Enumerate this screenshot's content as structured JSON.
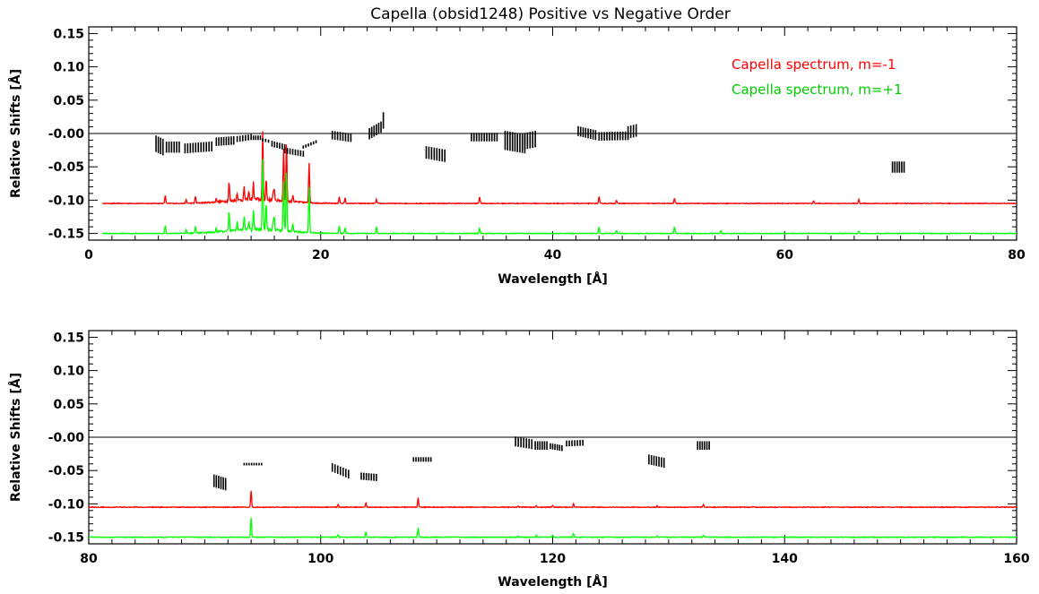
{
  "chart_data": [
    {
      "type": "line",
      "title": "Capella (obsid1248) Positive vs Negative Order",
      "xlabel": "Wavelength [Å]",
      "ylabel": "Relative Shifts [Å]",
      "xlim": [
        0,
        80
      ],
      "ylim": [
        -0.16,
        0.16
      ],
      "xticks": [
        "0",
        "20",
        "40",
        "60",
        "80"
      ],
      "yticks": [
        "0.15",
        "0.10",
        "0.05",
        "-0.00",
        "-0.05",
        "-0.10",
        "-0.15"
      ],
      "legend_position": "top-right",
      "reference_line_y": 0.0,
      "series": [
        {
          "name": "Capella spectrum, m=-1",
          "color": "#ff0000",
          "baseline": -0.105,
          "peaks": [
            [
              6.6,
              0.012
            ],
            [
              8.4,
              0.005
            ],
            [
              9.2,
              0.01
            ],
            [
              11.0,
              0.006
            ],
            [
              12.1,
              0.028
            ],
            [
              12.8,
              0.012
            ],
            [
              13.4,
              0.018
            ],
            [
              13.8,
              0.012
            ],
            [
              14.2,
              0.025
            ],
            [
              15.0,
              0.1
            ],
            [
              15.3,
              0.03
            ],
            [
              15.9,
              0.01
            ],
            [
              16.0,
              0.015
            ],
            [
              16.8,
              0.08
            ],
            [
              17.05,
              0.088
            ],
            [
              17.6,
              0.01
            ],
            [
              19.0,
              0.06
            ],
            [
              21.6,
              0.01
            ],
            [
              22.1,
              0.008
            ],
            [
              24.8,
              0.006
            ],
            [
              33.7,
              0.01
            ],
            [
              44.0,
              0.01
            ],
            [
              45.5,
              0.005
            ],
            [
              50.5,
              0.008
            ],
            [
              62.5,
              0.004
            ],
            [
              66.4,
              0.006
            ]
          ]
        },
        {
          "name": "Capella spectrum, m=+1",
          "color": "#00ff00",
          "baseline": -0.15,
          "peaks": [
            [
              6.6,
              0.012
            ],
            [
              8.4,
              0.005
            ],
            [
              9.2,
              0.01
            ],
            [
              11.0,
              0.006
            ],
            [
              12.1,
              0.03
            ],
            [
              12.8,
              0.012
            ],
            [
              13.4,
              0.022
            ],
            [
              13.8,
              0.012
            ],
            [
              14.2,
              0.028
            ],
            [
              15.0,
              0.105
            ],
            [
              15.3,
              0.04
            ],
            [
              15.9,
              0.012
            ],
            [
              16.0,
              0.02
            ],
            [
              16.8,
              0.075
            ],
            [
              17.05,
              0.09
            ],
            [
              17.6,
              0.012
            ],
            [
              19.0,
              0.068
            ],
            [
              21.6,
              0.012
            ],
            [
              22.1,
              0.008
            ],
            [
              24.8,
              0.01
            ],
            [
              33.7,
              0.008
            ],
            [
              44.0,
              0.01
            ],
            [
              45.5,
              0.005
            ],
            [
              50.5,
              0.01
            ],
            [
              54.5,
              0.004
            ],
            [
              66.4,
              0.004
            ]
          ]
        },
        {
          "name": "",
          "type": "errorbar",
          "color": "#000000",
          "groups": [
            {
              "x": [
                5.8,
                6.4
              ],
              "y": [
                -0.015,
                -0.02
              ],
              "err": 0.012
            },
            {
              "x": [
                6.7,
                7.8
              ],
              "y": [
                -0.02,
                -0.02
              ],
              "err": 0.008
            },
            {
              "x": [
                8.3,
                10.6
              ],
              "y": [
                -0.022,
                -0.019
              ],
              "err": 0.007
            },
            {
              "x": [
                11.0,
                12.5
              ],
              "y": [
                -0.012,
                -0.01
              ],
              "err": 0.006
            },
            {
              "x": [
                12.8,
                14.0
              ],
              "y": [
                -0.008,
                -0.005
              ],
              "err": 0.004
            },
            {
              "x": [
                14.2,
                14.8
              ],
              "y": [
                -0.006,
                -0.006
              ],
              "err": 0.003
            },
            {
              "x": [
                15.0,
                15.5
              ],
              "y": [
                -0.009,
                -0.011
              ],
              "err": 0.002
            },
            {
              "x": [
                15.8,
                16.9
              ],
              "y": [
                -0.015,
                -0.02
              ],
              "err": 0.004
            },
            {
              "x": [
                16.9,
                18.5
              ],
              "y": [
                -0.025,
                -0.03
              ],
              "err": 0.004
            },
            {
              "x": [
                18.5,
                19.6
              ],
              "y": [
                -0.02,
                -0.012
              ],
              "err": 0.002
            },
            {
              "x": [
                21.0,
                22.6
              ],
              "y": [
                -0.002,
                -0.006
              ],
              "err": 0.006
            },
            {
              "x": [
                24.2,
                25.2
              ],
              "y": [
                0.0,
                0.01
              ],
              "err": 0.008
            },
            {
              "x": [
                25.4,
                25.4
              ],
              "y": [
                0.02,
                0.02
              ],
              "err": 0.012
            },
            {
              "x": [
                29.1,
                30.7
              ],
              "y": [
                -0.028,
                -0.033
              ],
              "err": 0.009
            },
            {
              "x": [
                33.0,
                35.2
              ],
              "y": [
                -0.005,
                -0.005
              ],
              "err": 0.006
            },
            {
              "x": [
                35.9,
                37.6
              ],
              "y": [
                -0.01,
                -0.015
              ],
              "err": 0.014
            },
            {
              "x": [
                37.6,
                38.5
              ],
              "y": [
                -0.011,
                -0.008
              ],
              "err": 0.012
            },
            {
              "x": [
                42.2,
                43.7
              ],
              "y": [
                0.004,
                -0.002
              ],
              "err": 0.007
            },
            {
              "x": [
                44.0,
                46.5
              ],
              "y": [
                -0.004,
                -0.003
              ],
              "err": 0.006
            },
            {
              "x": [
                46.5,
                47.2
              ],
              "y": [
                0.002,
                0.005
              ],
              "err": 0.009
            },
            {
              "x": [
                69.3,
                70.3
              ],
              "y": [
                -0.05,
                -0.05
              ],
              "err": 0.008
            }
          ]
        }
      ]
    },
    {
      "type": "line",
      "title": "",
      "xlabel": "Wavelength [Å]",
      "ylabel": "Relative Shifts [Å]",
      "xlim": [
        80,
        160
      ],
      "ylim": [
        -0.16,
        0.16
      ],
      "xticks": [
        "80",
        "100",
        "120",
        "140",
        "160"
      ],
      "yticks": [
        "0.15",
        "0.10",
        "0.05",
        "-0.00",
        "-0.05",
        "-0.10",
        "-0.15"
      ],
      "reference_line_y": 0.0,
      "series": [
        {
          "name": "",
          "color": "#ff0000",
          "baseline": -0.105,
          "peaks": [
            [
              94.0,
              0.025
            ],
            [
              101.5,
              0.004
            ],
            [
              103.9,
              0.007
            ],
            [
              108.4,
              0.014
            ],
            [
              117.0,
              0.002
            ],
            [
              118.6,
              0.002
            ],
            [
              120.0,
              0.003
            ],
            [
              121.8,
              0.005
            ],
            [
              129.0,
              0.002
            ],
            [
              133.0,
              0.004
            ]
          ]
        },
        {
          "name": "",
          "color": "#00ff00",
          "baseline": -0.15,
          "peaks": [
            [
              94.0,
              0.03
            ],
            [
              101.5,
              0.004
            ],
            [
              103.9,
              0.008
            ],
            [
              108.4,
              0.014
            ],
            [
              117.0,
              0.002
            ],
            [
              118.6,
              0.003
            ],
            [
              120.0,
              0.003
            ],
            [
              121.8,
              0.005
            ],
            [
              129.0,
              0.002
            ],
            [
              133.0,
              0.003
            ]
          ]
        },
        {
          "name": "",
          "type": "errorbar",
          "color": "#000000",
          "groups": [
            {
              "x": [
                90.8,
                91.8
              ],
              "y": [
                -0.065,
                -0.07
              ],
              "err": 0.009
            },
            {
              "x": [
                93.4,
                94.9
              ],
              "y": [
                -0.04,
                -0.04
              ],
              "err": 0.0015
            },
            {
              "x": [
                101.0,
                102.4
              ],
              "y": [
                -0.045,
                -0.055
              ],
              "err": 0.006
            },
            {
              "x": [
                103.5,
                104.8
              ],
              "y": [
                -0.058,
                -0.06
              ],
              "err": 0.005
            },
            {
              "x": [
                108.0,
                109.5
              ],
              "y": [
                -0.033,
                -0.033
              ],
              "err": 0.003
            },
            {
              "x": [
                116.8,
                118.2
              ],
              "y": [
                -0.006,
                -0.01
              ],
              "err": 0.007
            },
            {
              "x": [
                118.5,
                119.5
              ],
              "y": [
                -0.012,
                -0.012
              ],
              "err": 0.006
            },
            {
              "x": [
                119.8,
                120.8
              ],
              "y": [
                -0.013,
                -0.016
              ],
              "err": 0.004
            },
            {
              "x": [
                121.2,
                122.6
              ],
              "y": [
                -0.009,
                -0.008
              ],
              "err": 0.004
            },
            {
              "x": [
                128.3,
                129.6
              ],
              "y": [
                -0.033,
                -0.038
              ],
              "err": 0.007
            },
            {
              "x": [
                132.5,
                133.5
              ],
              "y": [
                -0.012,
                -0.012
              ],
              "err": 0.006
            }
          ]
        }
      ]
    }
  ]
}
